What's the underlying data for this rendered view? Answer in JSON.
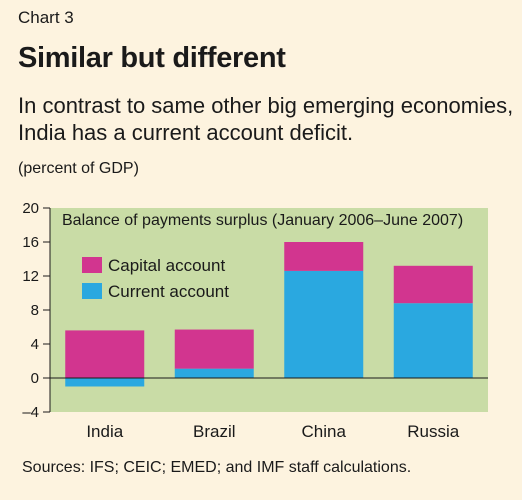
{
  "header": {
    "chart_number": "Chart 3",
    "title": "Similar but different",
    "subtitle": "In contrast to same other big emerging economies, India has a current account deficit.",
    "unit_label": "(percent of GDP)"
  },
  "footer": {
    "source": "Sources: IFS; CEIC; EMED; and IMF staff calculations."
  },
  "colors": {
    "background": "#fdf3df",
    "plot_background": "#c9dca6",
    "capital_account": "#d2358f",
    "current_account": "#2aa8e0",
    "axis": "#1a1a1a"
  },
  "chart_data": {
    "type": "bar",
    "stacked": true,
    "title": "Balance of payments surplus (January 2006–June 2007)",
    "categories": [
      "India",
      "Brazil",
      "China",
      "Russia"
    ],
    "series": [
      {
        "name": "Current account",
        "color": "#2aa8e0",
        "values": [
          -1.0,
          1.1,
          12.6,
          8.8
        ]
      },
      {
        "name": "Capital account",
        "color": "#d2358f",
        "values": [
          5.6,
          4.6,
          3.4,
          4.4
        ]
      }
    ],
    "legend_order": [
      "Capital account",
      "Current account"
    ],
    "ylim": [
      -4,
      20
    ],
    "yticks": [
      -4,
      0,
      4,
      8,
      12,
      16,
      20
    ],
    "ytick_labels": [
      "–4",
      "0",
      "4",
      "8",
      "12",
      "16",
      "20"
    ],
    "xlabel": "",
    "ylabel": "",
    "grid": false,
    "legend_position": "top-left"
  }
}
